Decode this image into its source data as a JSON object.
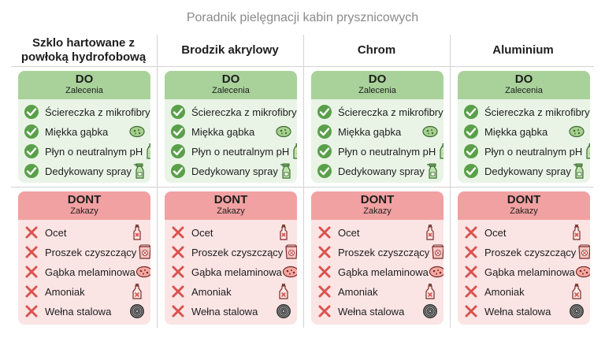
{
  "title": "Poradnik pielęgnacji kabin prysznicowych",
  "colors": {
    "do_header": "#a9d29b",
    "do_body": "#e9f4e6",
    "dont_header": "#f1a1a1",
    "dont_body": "#fbe4e4",
    "check": "#5aa04a",
    "cross": "#d9534f"
  },
  "columns": [
    {
      "heading": "Szklo hartowane z powłoką hydrofobową",
      "do": {
        "title": "DO",
        "subtitle": "Zalecenia",
        "items": [
          {
            "label": "Ściereczka z mikrofibry",
            "icon": "microfiber-cloth-icon"
          },
          {
            "label": "Miękka gąbka",
            "icon": "sponge-icon"
          },
          {
            "label": "Płyn o neutralnym pH",
            "icon": "bottle-icon"
          },
          {
            "label": "Dedykowany spray",
            "icon": "spray-bottle-icon"
          }
        ]
      },
      "dont": {
        "title": "DONT",
        "subtitle": "Zakazy",
        "items": [
          {
            "label": "Ocet",
            "icon": "vinegar-bottle-icon"
          },
          {
            "label": "Proszek czyszczący",
            "icon": "powder-bag-icon"
          },
          {
            "label": "Gąbka melaminowa",
            "icon": "melamine-sponge-icon"
          },
          {
            "label": "Amoniak",
            "icon": "ammonia-bottle-icon"
          },
          {
            "label": "Wełna stalowa",
            "icon": "steel-wool-icon"
          }
        ]
      }
    },
    {
      "heading": "Brodzik akrylowy",
      "do": {
        "title": "DO",
        "subtitle": "Zalecenia",
        "items": [
          {
            "label": "Ściereczka z mikrofibry",
            "icon": "microfiber-cloth-icon"
          },
          {
            "label": "Miękka gąbka",
            "icon": "sponge-icon"
          },
          {
            "label": "Płyn o neutralnym pH",
            "icon": "bottle-icon"
          },
          {
            "label": "Dedykowany spray",
            "icon": "spray-bottle-icon"
          }
        ]
      },
      "dont": {
        "title": "DONT",
        "subtitle": "Zakazy",
        "items": [
          {
            "label": "Ocet",
            "icon": "vinegar-bottle-icon"
          },
          {
            "label": "Proszek czyszczący",
            "icon": "powder-bag-icon"
          },
          {
            "label": "Gąbka melaminowa",
            "icon": "melamine-sponge-icon"
          },
          {
            "label": "Amoniak",
            "icon": "ammonia-bottle-icon"
          },
          {
            "label": "Wełna stalowa",
            "icon": "steel-wool-icon"
          }
        ]
      }
    },
    {
      "heading": "Chrom",
      "do": {
        "title": "DO",
        "subtitle": "Zalecenia",
        "items": [
          {
            "label": "Ściereczka z mikrofibry",
            "icon": "microfiber-cloth-icon"
          },
          {
            "label": "Miękka gąbka",
            "icon": "sponge-icon"
          },
          {
            "label": "Płyn o neutralnym pH",
            "icon": "bottle-icon"
          },
          {
            "label": "Dedykowany spray",
            "icon": "spray-bottle-icon"
          }
        ]
      },
      "dont": {
        "title": "DONT",
        "subtitle": "Zakazy",
        "items": [
          {
            "label": "Ocet",
            "icon": "vinegar-bottle-icon"
          },
          {
            "label": "Proszek czyszczący",
            "icon": "powder-bag-icon"
          },
          {
            "label": "Gąbka melaminowa",
            "icon": "melamine-sponge-icon"
          },
          {
            "label": "Amoniak",
            "icon": "ammonia-bottle-icon"
          },
          {
            "label": "Wełna stalowa",
            "icon": "steel-wool-icon"
          }
        ]
      }
    },
    {
      "heading": "Aluminium",
      "do": {
        "title": "DO",
        "subtitle": "Zalecenia",
        "items": [
          {
            "label": "Ściereczka z mikrofibry",
            "icon": "microfiber-cloth-icon"
          },
          {
            "label": "Miękka gąbka",
            "icon": "sponge-icon"
          },
          {
            "label": "Płyn o neutralnym pH",
            "icon": "bottle-icon"
          },
          {
            "label": "Dedykowany spray",
            "icon": "spray-bottle-icon"
          }
        ]
      },
      "dont": {
        "title": "DONT",
        "subtitle": "Zakazy",
        "items": [
          {
            "label": "Ocet",
            "icon": "vinegar-bottle-icon"
          },
          {
            "label": "Proszek czyszczący",
            "icon": "powder-bag-icon"
          },
          {
            "label": "Gąbka melaminowa",
            "icon": "melamine-sponge-icon"
          },
          {
            "label": "Amoniak",
            "icon": "ammonia-bottle-icon"
          },
          {
            "label": "Wełna stalowa",
            "icon": "steel-wool-icon"
          }
        ]
      }
    }
  ]
}
